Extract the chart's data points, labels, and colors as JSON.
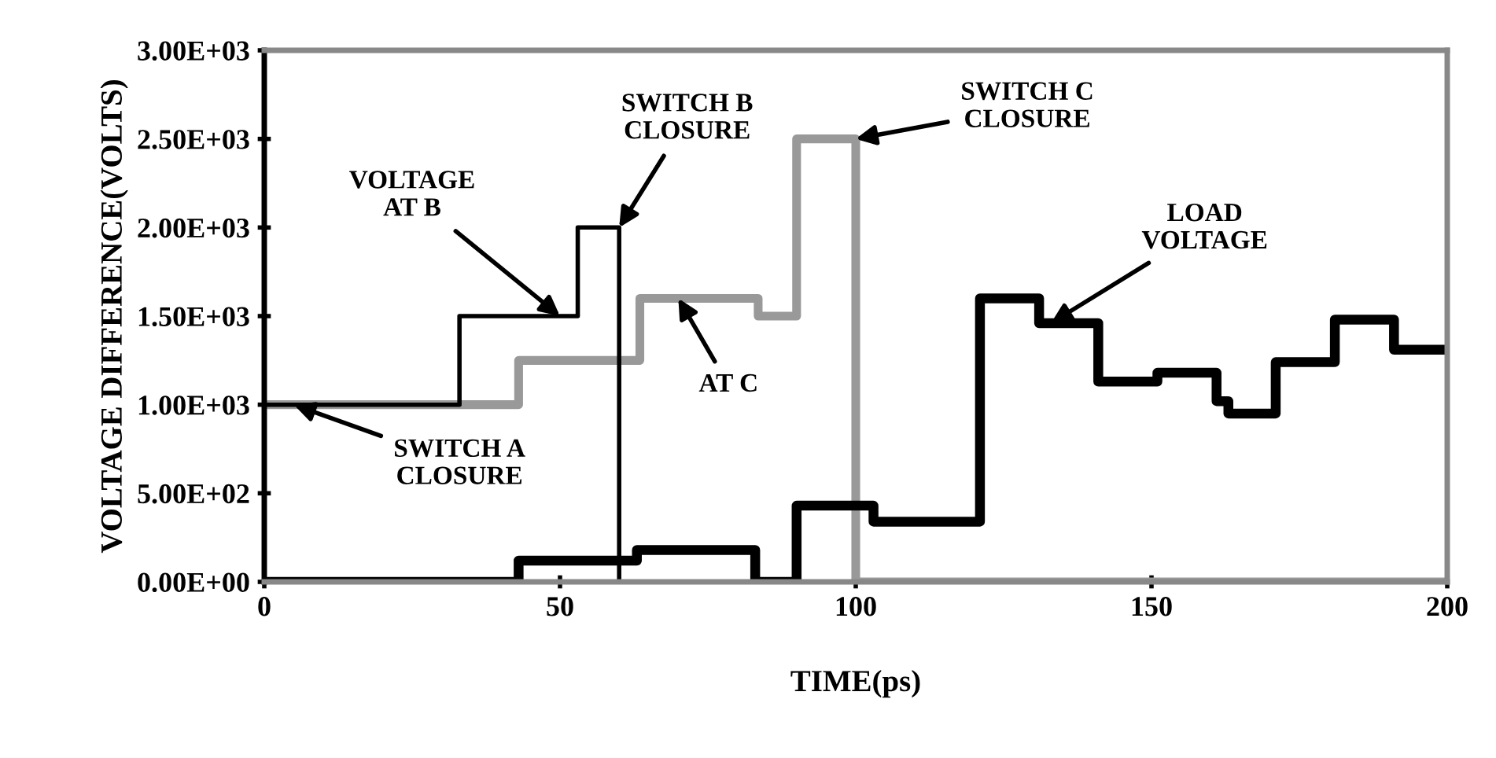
{
  "chart_data": {
    "type": "step",
    "xlabel": "TIME(ps)",
    "ylabel": "VOLTAGE DIFFERENCE(VOLTS)",
    "xlim": [
      0,
      200
    ],
    "xticks": [
      0,
      50,
      100,
      150,
      200
    ],
    "ylim": [
      0,
      3000
    ],
    "yticks": [
      {
        "value": 0,
        "label": "0.00E+00"
      },
      {
        "value": 500,
        "label": "5.00E+02"
      },
      {
        "value": 1000,
        "label": "1.00E+03"
      },
      {
        "value": 1500,
        "label": "1.50E+03"
      },
      {
        "value": 2000,
        "label": "2.00E+03"
      },
      {
        "value": 2500,
        "label": "2.50E+03"
      },
      {
        "value": 3000,
        "label": "3.00E+03"
      }
    ],
    "grid": false,
    "legend": false,
    "series": [
      {
        "color": "#999999",
        "x": [
          0,
          43,
          63.5,
          83.5,
          90,
          100,
          200
        ],
        "values": [
          1000,
          1250,
          1600,
          1500,
          2500,
          0,
          0
        ]
      },
      {
        "color": "#000000",
        "x": [
          0,
          33,
          53,
          60,
          60
        ],
        "values": [
          1000,
          1500,
          2000,
          2000,
          0
        ]
      },
      {
        "color": "#000000",
        "x": [
          0,
          43,
          63,
          83,
          90,
          103,
          121,
          131,
          141,
          151,
          161,
          163,
          171,
          181,
          191,
          200
        ],
        "values": [
          0,
          120,
          180,
          0,
          430,
          340,
          1600,
          1460,
          1130,
          1180,
          1020,
          950,
          1240,
          1480,
          1310,
          1310
        ]
      }
    ],
    "annotations": [
      {
        "text": "VOLTAGE\nAT B",
        "x": 50,
        "y": 1500
      },
      {
        "text": "SWITCH B\nCLOSURE",
        "x": 60,
        "y": 2000
      },
      {
        "text": "SWITCH C\nCLOSURE",
        "x": 100,
        "y": 2500
      },
      {
        "text": "SWITCH A\nCLOSURE",
        "x": 5,
        "y": 1000
      },
      {
        "text": "AT C",
        "x": 70,
        "y": 1600
      },
      {
        "text": "LOAD\nVOLTAGE",
        "x": 133,
        "y": 1460
      }
    ]
  }
}
